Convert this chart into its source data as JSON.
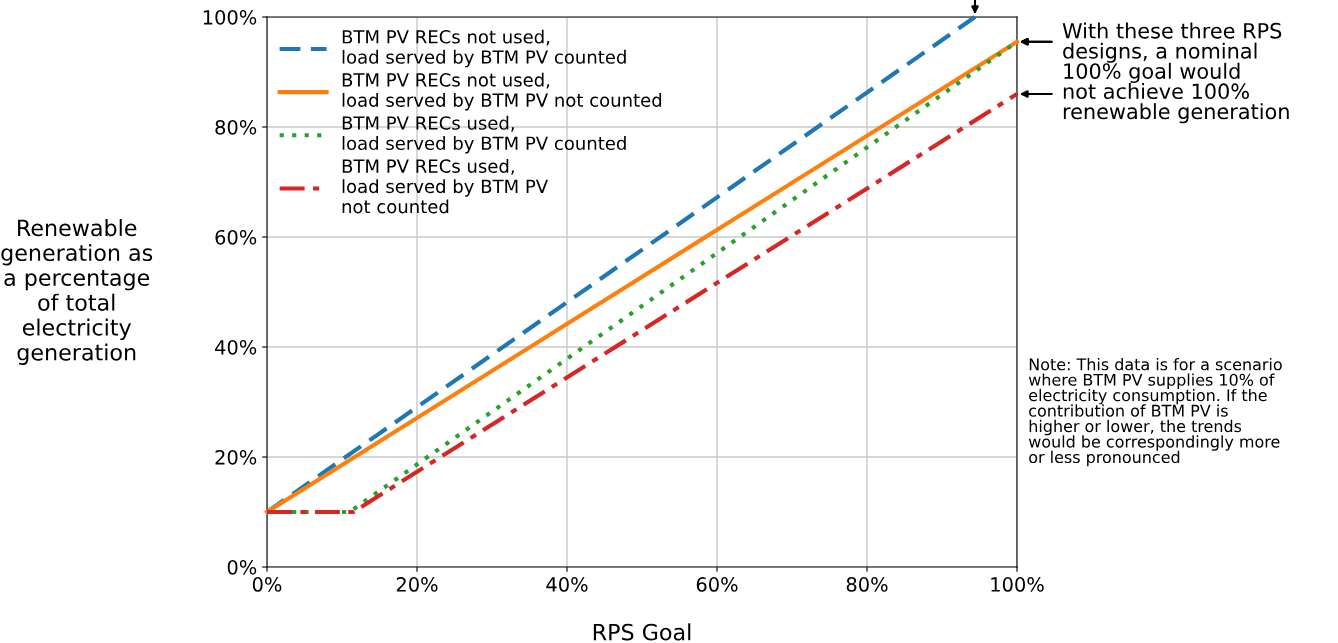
{
  "chart_data": {
    "type": "line",
    "xlabel": "RPS Goal",
    "ylabel": "Renewable\ngeneration as\na percentage\nof total\nelectricity\ngeneration",
    "series": [
      {
        "name": "BTM PV RECs not used,\nload served by BTM PV counted",
        "color": "#1f77b4",
        "line_style": "dashed",
        "x": [
          0,
          94.4
        ],
        "values": [
          10,
          100
        ]
      },
      {
        "name": "BTM PV RECs not used,\nload served by BTM PV not counted",
        "color": "#ff7f0e",
        "line_style": "solid",
        "x": [
          0,
          100
        ],
        "values": [
          10,
          95.5
        ]
      },
      {
        "name": "BTM PV RECs used,\nload served by BTM PV counted",
        "color": "#2ca02c",
        "line_style": "dotted",
        "x": [
          0,
          11,
          100
        ],
        "values": [
          10,
          10,
          95.5
        ]
      },
      {
        "name": "BTM PV RECs used,\nload served by BTM PV\nnot counted",
        "color": "#d62728",
        "line_style": "dashdot",
        "x": [
          0,
          11.5,
          100
        ],
        "values": [
          10,
          10,
          86
        ]
      }
    ],
    "xlim": [
      0,
      100
    ],
    "ylim": [
      0,
      100
    ],
    "xticks": [
      {
        "value": 0,
        "label": "0%"
      },
      {
        "value": 20,
        "label": "20%"
      },
      {
        "value": 40,
        "label": "40%"
      },
      {
        "value": 60,
        "label": "60%"
      },
      {
        "value": 80,
        "label": "80%"
      },
      {
        "value": 100,
        "label": "100%"
      }
    ],
    "yticks": [
      {
        "value": 0,
        "label": "0%"
      },
      {
        "value": 20,
        "label": "20%"
      },
      {
        "value": 40,
        "label": "40%"
      },
      {
        "value": 60,
        "label": "60%"
      },
      {
        "value": 80,
        "label": "80%"
      },
      {
        "value": 100,
        "label": "100%"
      }
    ],
    "grid": true,
    "legend": "top left",
    "marker": "none",
    "annotations": [
      "With these three RPS\ndesigns, a nominal\n100% goal would\nnot achieve 100%\nrenewable generation",
      "Note: This data is for a scenario\nwhere BTM PV supplies 10% of\nelectricity consumption. If the\ncontribution of BTM PV is\nhigher or lower, the trends\nwould be correspondingly more\nor less pronounced"
    ]
  }
}
